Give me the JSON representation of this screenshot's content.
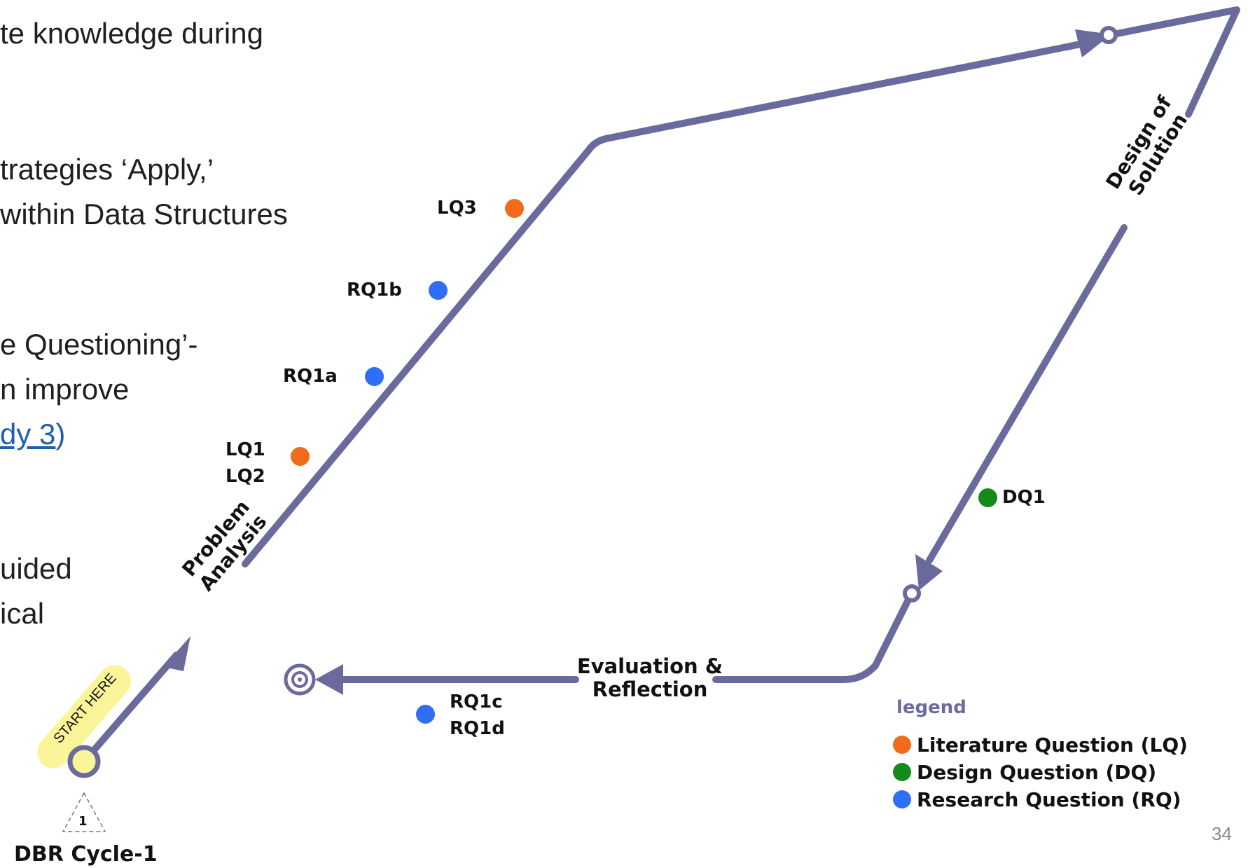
{
  "slide_text": {
    "line1": "te knowledge during",
    "line2": "trategies ‘Apply,’",
    "line3": "within Data Structures",
    "line4": "e Questioning’-",
    "line5": "n improve",
    "line6_link": "dy 3",
    "line6_paren": ")",
    "line7": "uided",
    "line8": "ical"
  },
  "diagram": {
    "phases": {
      "problem_line1": "Problem",
      "problem_line2": "Analysis",
      "design_line1": "Design of",
      "design_line2": "Solution",
      "eval_line1": "Evaluation &",
      "eval_line2": "Reflection"
    },
    "start_badge": "START HERE",
    "cycle_number": "1",
    "cycle_label": "DBR Cycle-1",
    "questions": {
      "lq3": "LQ3",
      "rq1b": "RQ1b",
      "rq1a": "RQ1a",
      "lq1": "LQ1",
      "lq2": "LQ2",
      "dq1": "DQ1",
      "rq1c": "RQ1c",
      "rq1d": "RQ1d"
    },
    "legend": {
      "title": "legend",
      "items": [
        {
          "label": "Literature Question (LQ)",
          "color": "#f26a1b"
        },
        {
          "label": "Design Question (DQ)",
          "color": "#138a1c"
        },
        {
          "label": "Research Question (RQ)",
          "color": "#2f6ef5"
        }
      ]
    },
    "colors": {
      "path": "#6a6a9c",
      "literature": "#f26a1b",
      "design": "#138a1c",
      "research": "#2f6ef5",
      "start_highlight": "#fbf59a"
    }
  },
  "page_number": "34"
}
